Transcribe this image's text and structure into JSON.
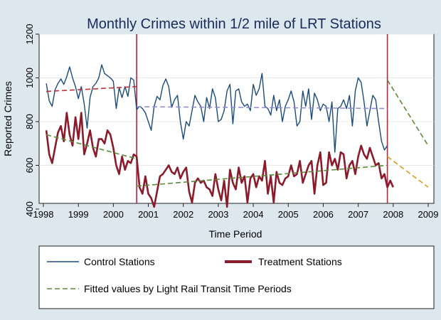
{
  "chart_data": {
    "type": "line",
    "title": "Monthly Crimes within 1/2 mile of LRT Stations",
    "xlabel": "Time Period",
    "ylabel": "Reported Crimes",
    "xlim": [
      1998.0,
      2009.0
    ],
    "ylim": [
      400,
      1200
    ],
    "x_ticks": [
      1998,
      1999,
      2000,
      2001,
      2002,
      2003,
      2004,
      2005,
      2006,
      2007,
      2008,
      2009
    ],
    "y_ticks": [
      400,
      600,
      800,
      1000,
      1200
    ],
    "grid": "horizontal",
    "colors": {
      "plot_background": "#ffffff",
      "figure_background": "#dde7ee",
      "control": "#1a4b7a",
      "treatment": "#8b1a2b",
      "period_line": "#c41e3a",
      "fitted": "#5a8a3a",
      "fitted_treatment_pre": "#c0303a",
      "fitted_control_mid": "#9090d0",
      "fitted_post": "#d4a020",
      "title": "#1a2a5a"
    },
    "period_breaks": [
      2000.667,
      2007.833
    ],
    "series": [
      {
        "name": "Control Stations",
        "x_start": 1998.083,
        "x_step": 0.08333,
        "values": [
          975,
          895,
          870,
          945,
          975,
          995,
          970,
          1005,
          1050,
          1000,
          960,
          905,
          960,
          880,
          770,
          910,
          960,
          975,
          1000,
          1060,
          1020,
          1010,
          1000,
          985,
          860,
          955,
          910,
          960,
          915,
          1000,
          990,
          855,
          870,
          860,
          840,
          800,
          760,
          870,
          915,
          900,
          965,
          995,
          960,
          865,
          900,
          920,
          800,
          720,
          800,
          780,
          850,
          920,
          890,
          870,
          800,
          910,
          860,
          950,
          910,
          800,
          810,
          850,
          940,
          970,
          790,
          940,
          950,
          890,
          870,
          880,
          850,
          970,
          920,
          950,
          1020,
          870,
          860,
          830,
          920,
          850,
          900,
          800,
          870,
          900,
          940,
          890,
          780,
          800,
          940,
          870,
          950,
          810,
          930,
          900,
          850,
          880,
          870,
          800,
          890,
          660,
          860,
          870,
          900,
          860,
          920,
          780,
          940,
          1000,
          980,
          890,
          780,
          850,
          920,
          900,
          800,
          710,
          670,
          690
        ]
      },
      {
        "name": "Treatment Stations",
        "x_start": 1998.083,
        "x_step": 0.08333,
        "values": [
          760,
          650,
          610,
          680,
          750,
          780,
          710,
          840,
          740,
          690,
          820,
          720,
          840,
          650,
          700,
          760,
          680,
          640,
          720,
          720,
          700,
          760,
          740,
          680,
          600,
          560,
          640,
          580,
          620,
          610,
          650,
          640,
          500,
          470,
          550,
          470,
          450,
          410,
          480,
          550,
          560,
          580,
          600,
          570,
          560,
          590,
          540,
          570,
          590,
          480,
          430,
          520,
          540,
          520,
          530,
          500,
          490,
          460,
          560,
          490,
          440,
          530,
          410,
          580,
          520,
          490,
          590,
          520,
          550,
          430,
          540,
          560,
          500,
          550,
          530,
          620,
          470,
          550,
          430,
          570,
          520,
          510,
          540,
          550,
          600,
          550,
          560,
          620,
          520,
          560,
          600,
          620,
          470,
          600,
          660,
          510,
          520,
          660,
          600,
          630,
          580,
          660,
          650,
          540,
          600,
          620,
          560,
          640,
          690,
          650,
          630,
          680,
          640,
          600,
          610,
          540,
          560,
          500,
          530,
          500
        ]
      }
    ],
    "fitted": [
      {
        "x": [
          1998.083,
          2000.667
        ],
        "values": [
          938,
          960
        ]
      },
      {
        "x": [
          2000.667,
          2007.833
        ],
        "values": [
          868,
          860
        ]
      },
      {
        "x": [
          2007.833,
          2009.0
        ],
        "values": [
          990,
          690
        ]
      },
      {
        "x": [
          1998.083,
          2000.667
        ],
        "values": [
          740,
          630
        ]
      },
      {
        "x": [
          2000.667,
          2007.833
        ],
        "values": [
          505,
          600
        ]
      },
      {
        "x": [
          2007.833,
          2009.0
        ],
        "values": [
          640,
          500
        ]
      }
    ],
    "legend": {
      "placement": "bottom",
      "items": [
        {
          "label": "Control Stations",
          "style": "control"
        },
        {
          "label": "Treatment Stations",
          "style": "treatment"
        },
        {
          "label": "Fitted values by Light Rail Transit Time Periods",
          "style": "fitted"
        }
      ]
    }
  }
}
